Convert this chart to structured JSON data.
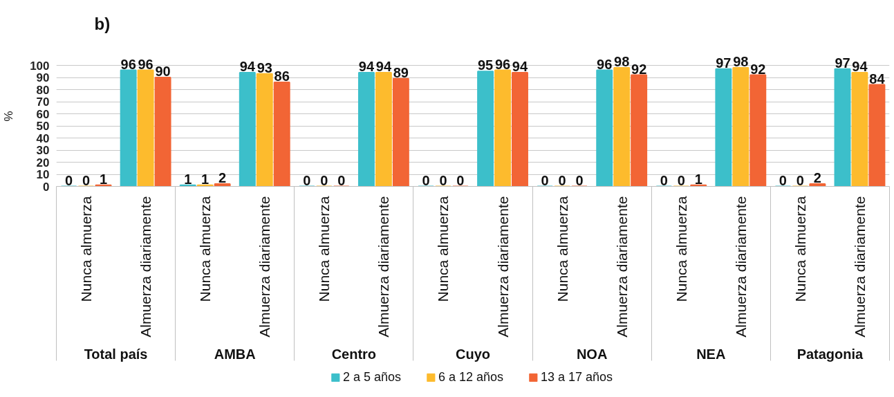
{
  "chart_data": {
    "type": "bar",
    "title": "b)",
    "ylabel": "%",
    "categories": [
      "Nunca almuerza",
      "Almuerza diariamente",
      "Nunca almuerza",
      "Almuerza diariamente",
      "Nunca almuerza",
      "Almuerza diariamente",
      "Nunca almuerza",
      "Almuerza diariamente",
      "Nunca almuerza",
      "Almuerza diariamente",
      "Nunca almuerza",
      "Almuerza diariamente",
      "Nunca almuerza",
      "Almuerza diariamente"
    ],
    "annotations": [
      "Total país",
      "AMBA",
      "Centro",
      "Cuyo",
      "NOA",
      "NEA",
      "Patagonia"
    ],
    "series": [
      {
        "name": "2 a 5 años",
        "color": "#3cbfca",
        "values": [
          0,
          96,
          1,
          94,
          0,
          94,
          0,
          95,
          0,
          96,
          0,
          97,
          0,
          97
        ]
      },
      {
        "name": "6 a 12 años",
        "color": "#fdbb2d",
        "values": [
          0,
          96,
          1,
          93,
          0,
          94,
          0,
          96,
          0,
          98,
          0,
          98,
          0,
          94
        ]
      },
      {
        "name": "13 a 17 años",
        "color": "#f26535",
        "values": [
          1,
          90,
          2,
          86,
          0,
          89,
          0,
          94,
          0,
          92,
          1,
          92,
          2,
          84
        ]
      }
    ],
    "ylim": [
      0,
      100
    ],
    "yticks": [
      0,
      10,
      20,
      30,
      40,
      50,
      60,
      70,
      80,
      90,
      100
    ],
    "grid": "y",
    "legend": "bottom",
    "data_labels": true
  }
}
